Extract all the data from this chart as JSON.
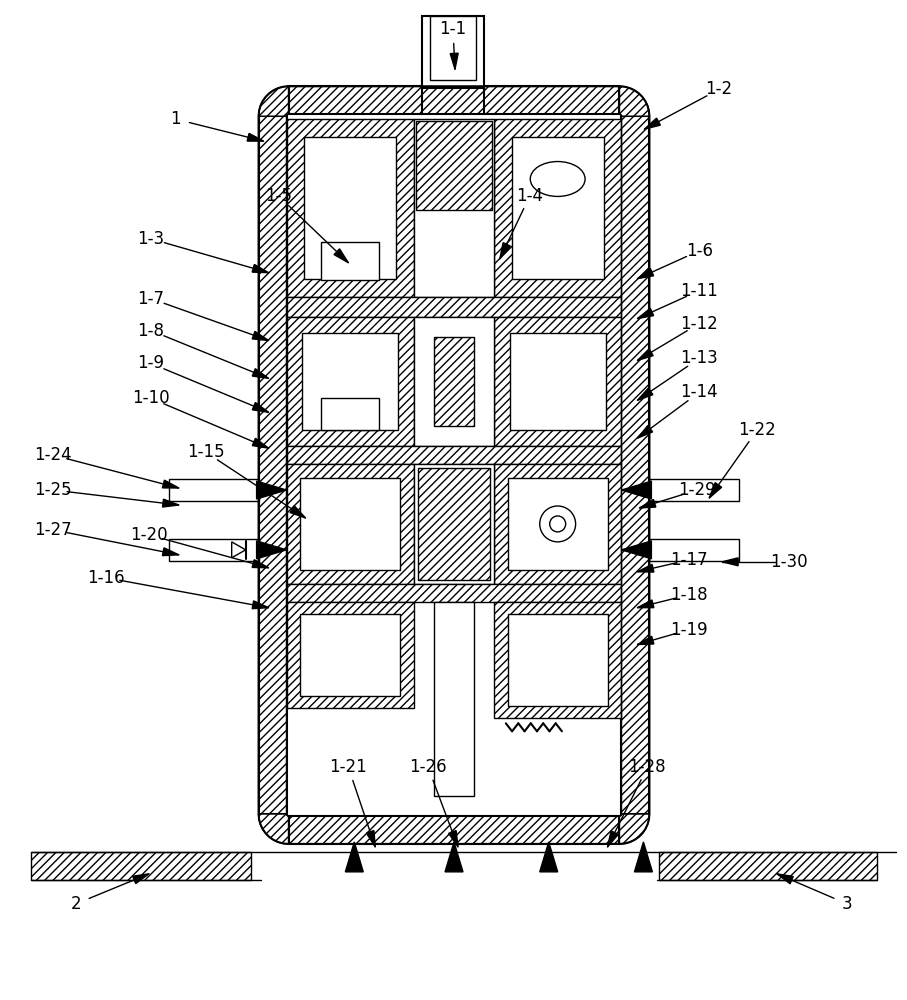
{
  "bg_color": "#ffffff",
  "figsize": [
    9.07,
    10.0
  ],
  "dpi": 100,
  "labels_data": [
    [
      "1-1",
      453,
      28,
      455,
      68
    ],
    [
      "1",
      175,
      118,
      263,
      140
    ],
    [
      "1-2",
      720,
      88,
      645,
      128
    ],
    [
      "1-3",
      150,
      238,
      268,
      272
    ],
    [
      "1-4",
      530,
      195,
      500,
      258
    ],
    [
      "1-5",
      278,
      195,
      348,
      262
    ],
    [
      "1-6",
      700,
      250,
      638,
      278
    ],
    [
      "1-7",
      150,
      298,
      268,
      340
    ],
    [
      "1-8",
      150,
      330,
      268,
      378
    ],
    [
      "1-9",
      150,
      363,
      268,
      412
    ],
    [
      "1-10",
      150,
      398,
      268,
      448
    ],
    [
      "1-11",
      700,
      290,
      638,
      318
    ],
    [
      "1-12",
      700,
      323,
      638,
      360
    ],
    [
      "1-13",
      700,
      358,
      638,
      400
    ],
    [
      "1-14",
      700,
      392,
      638,
      438
    ],
    [
      "1-15",
      205,
      452,
      305,
      518
    ],
    [
      "1-16",
      105,
      578,
      268,
      608
    ],
    [
      "1-17",
      690,
      560,
      638,
      572
    ],
    [
      "1-18",
      690,
      595,
      638,
      608
    ],
    [
      "1-19",
      690,
      630,
      638,
      645
    ],
    [
      "1-20",
      148,
      535,
      268,
      568
    ],
    [
      "1-21",
      348,
      768,
      375,
      848
    ],
    [
      "1-22",
      758,
      430,
      710,
      498
    ],
    [
      "1-24",
      52,
      455,
      178,
      488
    ],
    [
      "1-25",
      52,
      490,
      178,
      505
    ],
    [
      "1-26",
      428,
      768,
      458,
      848
    ],
    [
      "1-27",
      52,
      530,
      178,
      555
    ],
    [
      "1-28",
      648,
      768,
      608,
      848
    ],
    [
      "1-29",
      698,
      490,
      640,
      508
    ],
    [
      "1-30",
      790,
      562,
      723,
      562
    ],
    [
      "2",
      75,
      905,
      148,
      875
    ],
    [
      "3",
      848,
      905,
      778,
      875
    ]
  ]
}
